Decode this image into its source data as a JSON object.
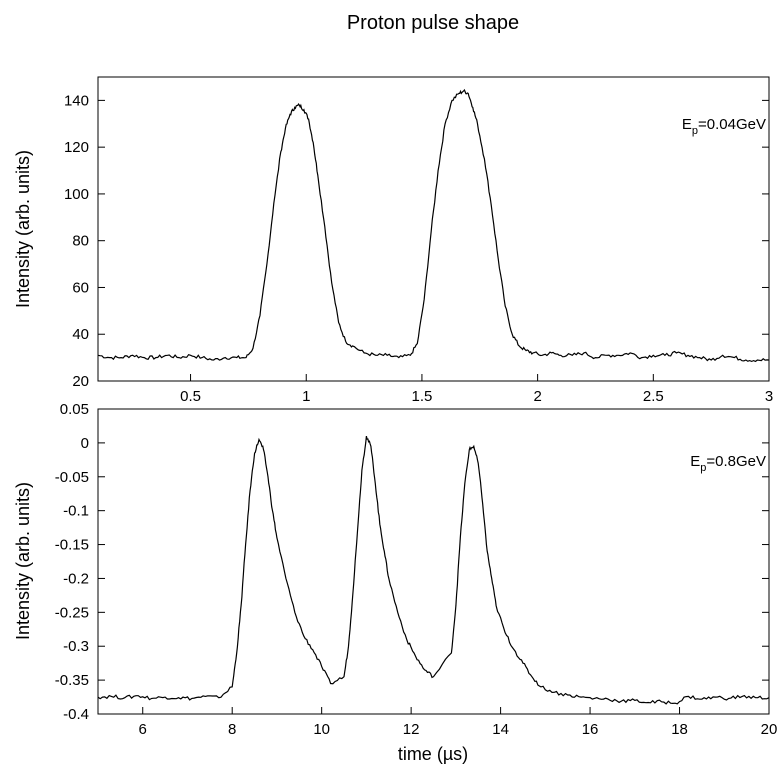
{
  "figure": {
    "title": "Proton pulse shape"
  },
  "chart_data": [
    {
      "type": "line",
      "title": "",
      "xlabel": "",
      "ylabel": "Intensity (arb. units)",
      "xlim": [
        0.1,
        3.0
      ],
      "ylim": [
        20,
        150
      ],
      "xticks": [
        0.5,
        1,
        1.5,
        2,
        2.5,
        3
      ],
      "xtick_labels": [
        "0.5",
        "1",
        "1.5",
        "2",
        "2.5",
        "3"
      ],
      "yticks": [
        20,
        40,
        60,
        80,
        100,
        120,
        140
      ],
      "ytick_labels": [
        "20",
        "40",
        "60",
        "80",
        "100",
        "120",
        "140"
      ],
      "annotation": {
        "main": "E",
        "sub": "p",
        "rest": "=0.04GeV"
      },
      "grid": false,
      "series": [
        {
          "x": [
            0.1,
            0.15,
            0.2,
            0.25,
            0.3,
            0.35,
            0.4,
            0.45,
            0.5,
            0.55,
            0.6,
            0.65,
            0.7,
            0.74,
            0.77,
            0.8,
            0.83,
            0.86,
            0.89,
            0.91,
            0.93,
            0.95,
            0.97,
            0.99,
            1.01,
            1.03,
            1.05,
            1.08,
            1.11,
            1.14,
            1.17,
            1.2,
            1.25,
            1.3,
            1.35,
            1.4,
            1.45,
            1.48,
            1.51,
            1.54,
            1.57,
            1.6,
            1.63,
            1.66,
            1.68,
            1.7,
            1.72,
            1.74,
            1.77,
            1.8,
            1.83,
            1.86,
            1.89,
            1.92,
            1.95,
            1.98,
            2.02,
            2.06,
            2.1,
            2.15,
            2.2,
            2.25,
            2.3,
            2.35,
            2.4,
            2.45,
            2.5,
            2.55,
            2.6,
            2.65,
            2.7,
            2.75,
            2.8,
            2.85,
            2.9,
            2.95,
            3.0
          ],
          "y": [
            31,
            30,
            30,
            31,
            30,
            30,
            31,
            30,
            31,
            30,
            29,
            30,
            30,
            30,
            34,
            48,
            70,
            96,
            118,
            128,
            134,
            137,
            138,
            136,
            132,
            122,
            108,
            86,
            62,
            45,
            37,
            35,
            32,
            31,
            31,
            30,
            31,
            36,
            55,
            84,
            110,
            130,
            140,
            143,
            144,
            143,
            137,
            130,
            115,
            95,
            72,
            52,
            40,
            35,
            33,
            32,
            31,
            32,
            31,
            31,
            32,
            30,
            31,
            31,
            32,
            30,
            31,
            31,
            32,
            31,
            30,
            29,
            31,
            30,
            29,
            29,
            29
          ]
        }
      ]
    },
    {
      "type": "line",
      "title": "",
      "xlabel": "time (µs)",
      "ylabel": "Intensity (arb. units)",
      "xlim": [
        5,
        20
      ],
      "ylim": [
        -0.4,
        0.05
      ],
      "xticks": [
        6,
        8,
        10,
        12,
        14,
        16,
        18,
        20
      ],
      "xtick_labels": [
        "6",
        "8",
        "10",
        "12",
        "14",
        "16",
        "18",
        "20"
      ],
      "yticks": [
        -0.4,
        -0.35,
        -0.3,
        -0.25,
        -0.2,
        -0.15,
        -0.1,
        -0.05,
        0,
        0.05
      ],
      "ytick_labels": [
        "-0.4",
        "-0.35",
        "-0.3",
        "-0.25",
        "-0.2",
        "-0.15",
        "-0.1",
        "-0.05",
        "0",
        "0.05"
      ],
      "annotation": {
        "main": "E",
        "sub": "p",
        "rest": "=0.8GeV"
      },
      "grid": false,
      "series": [
        {
          "x": [
            5.0,
            5.3,
            5.6,
            5.9,
            6.2,
            6.5,
            6.8,
            7.1,
            7.4,
            7.7,
            8.0,
            8.1,
            8.2,
            8.3,
            8.4,
            8.5,
            8.6,
            8.7,
            8.8,
            8.9,
            9.0,
            9.2,
            9.4,
            9.6,
            9.8,
            10.0,
            10.2,
            10.5,
            10.6,
            10.7,
            10.8,
            10.9,
            11.0,
            11.1,
            11.2,
            11.3,
            11.4,
            11.5,
            11.7,
            11.9,
            12.1,
            12.3,
            12.5,
            12.9,
            13.0,
            13.1,
            13.2,
            13.3,
            13.4,
            13.5,
            13.6,
            13.7,
            13.8,
            13.9,
            14.1,
            14.3,
            14.5,
            14.7,
            14.9,
            15.2,
            15.5,
            15.8,
            16.1,
            16.4,
            16.7,
            17.0,
            17.3,
            17.6,
            17.9,
            18.2,
            18.5,
            18.8,
            19.1,
            19.4,
            19.7,
            20.0
          ],
          "y": [
            -0.375,
            -0.374,
            -0.376,
            -0.373,
            -0.377,
            -0.375,
            -0.376,
            -0.377,
            -0.374,
            -0.376,
            -0.36,
            -0.31,
            -0.24,
            -0.15,
            -0.07,
            -0.015,
            0.005,
            -0.01,
            -0.05,
            -0.1,
            -0.14,
            -0.2,
            -0.25,
            -0.285,
            -0.305,
            -0.33,
            -0.355,
            -0.345,
            -0.3,
            -0.22,
            -0.13,
            -0.04,
            0.01,
            -0.005,
            -0.06,
            -0.12,
            -0.16,
            -0.2,
            -0.25,
            -0.29,
            -0.315,
            -0.335,
            -0.345,
            -0.31,
            -0.24,
            -0.14,
            -0.06,
            -0.01,
            -0.005,
            -0.03,
            -0.09,
            -0.16,
            -0.2,
            -0.24,
            -0.28,
            -0.305,
            -0.325,
            -0.345,
            -0.36,
            -0.368,
            -0.372,
            -0.375,
            -0.377,
            -0.378,
            -0.381,
            -0.38,
            -0.383,
            -0.382,
            -0.384,
            -0.374,
            -0.378,
            -0.375,
            -0.377,
            -0.374,
            -0.376,
            -0.376
          ]
        }
      ]
    }
  ]
}
